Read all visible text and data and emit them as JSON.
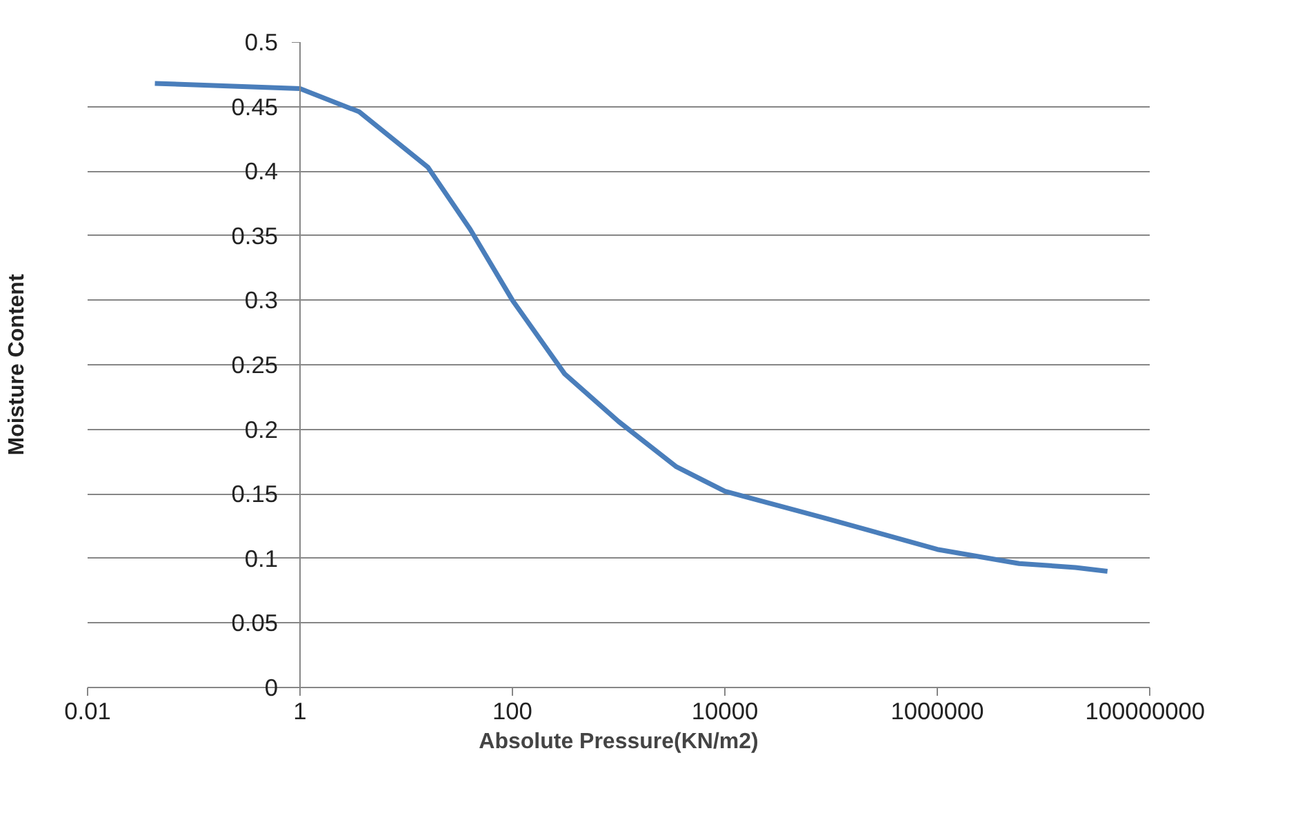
{
  "chart_data": {
    "type": "line",
    "xlabel": "Absolute Pressure(KN/m2)",
    "ylabel": "Moisture Content",
    "log": "x",
    "grid": "y",
    "marker": "none",
    "line_style": "solid",
    "xlim": [
      0.01,
      100000000
    ],
    "ylim": [
      0,
      0.5
    ],
    "xticks": [
      {
        "value": 0.01,
        "label": "0.01"
      },
      {
        "value": 1,
        "label": "1"
      },
      {
        "value": 100,
        "label": "100"
      },
      {
        "value": 10000,
        "label": "10000"
      },
      {
        "value": 1000000,
        "label": "1000000"
      },
      {
        "value": 100000000,
        "label": "100000000"
      }
    ],
    "yticks": [
      {
        "value": 0,
        "label": "0"
      },
      {
        "value": 0.05,
        "label": "0.05"
      },
      {
        "value": 0.1,
        "label": "0.1"
      },
      {
        "value": 0.15,
        "label": "0.15"
      },
      {
        "value": 0.2,
        "label": "0.2"
      },
      {
        "value": 0.25,
        "label": "0.25"
      },
      {
        "value": 0.3,
        "label": "0.3"
      },
      {
        "value": 0.35,
        "label": "0.35"
      },
      {
        "value": 0.4,
        "label": "0.4"
      },
      {
        "value": 0.45,
        "label": "0.45"
      },
      {
        "value": 0.5,
        "label": "0.5"
      }
    ],
    "x": [
      0.043,
      1,
      3.6,
      16,
      40,
      100,
      310,
      1000,
      3500,
      10000,
      90000,
      1000000,
      5900000,
      20000000,
      40000000
    ],
    "series": [
      {
        "color": "#4a7ebb",
        "values": [
          0.468,
          0.464,
          0.446,
          0.403,
          0.355,
          0.3,
          0.243,
          0.206,
          0.171,
          0.152,
          0.131,
          0.107,
          0.096,
          0.093,
          0.09
        ]
      }
    ]
  }
}
